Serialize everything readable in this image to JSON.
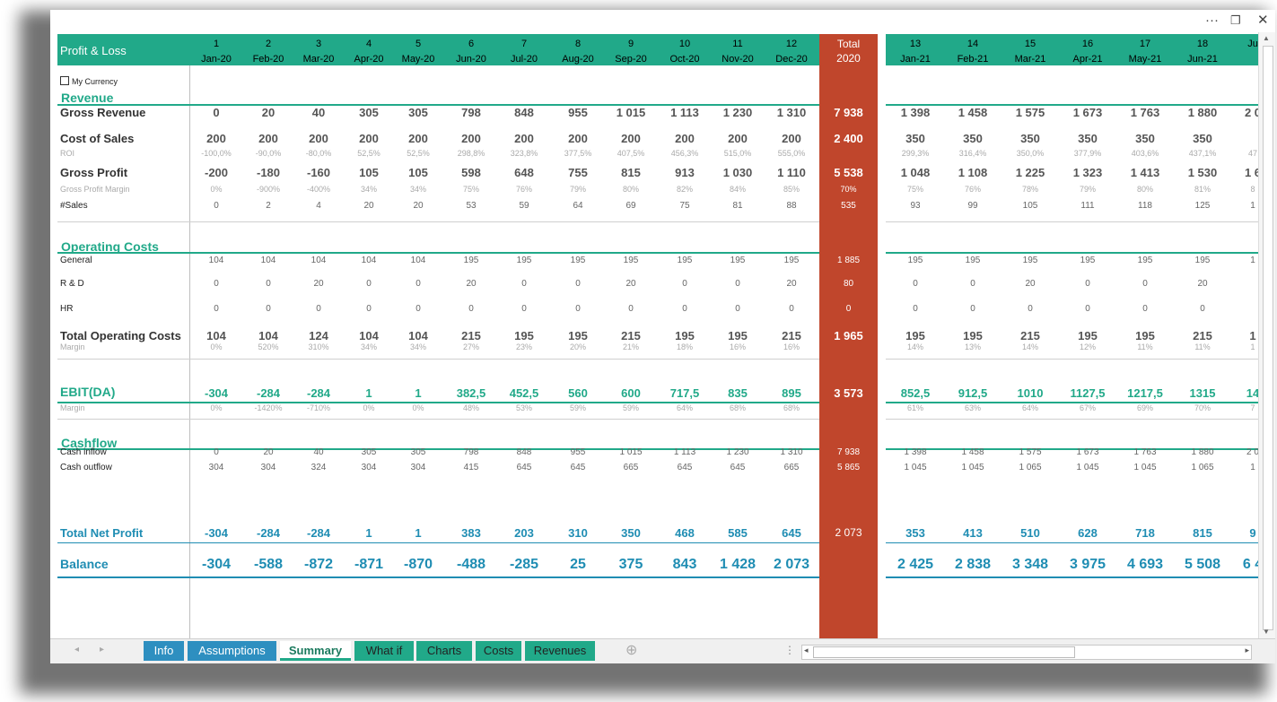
{
  "window": {
    "more_label": "···",
    "restore_label": "❐",
    "close_label": "✕"
  },
  "header": {
    "title": "Profit & Loss",
    "months": [
      {
        "n": "1",
        "d": "Jan-20"
      },
      {
        "n": "2",
        "d": "Feb-20"
      },
      {
        "n": "3",
        "d": "Mar-20"
      },
      {
        "n": "4",
        "d": "Apr-20"
      },
      {
        "n": "5",
        "d": "May-20"
      },
      {
        "n": "6",
        "d": "Jun-20"
      },
      {
        "n": "7",
        "d": "Jul-20"
      },
      {
        "n": "8",
        "d": "Aug-20"
      },
      {
        "n": "9",
        "d": "Sep-20"
      },
      {
        "n": "10",
        "d": "Oct-20"
      },
      {
        "n": "11",
        "d": "Nov-20"
      },
      {
        "n": "12",
        "d": "Dec-20"
      },
      {
        "n": "13",
        "d": "Jan-21"
      },
      {
        "n": "14",
        "d": "Feb-21"
      },
      {
        "n": "15",
        "d": "Mar-21"
      },
      {
        "n": "16",
        "d": "Apr-21"
      },
      {
        "n": "17",
        "d": "May-21"
      },
      {
        "n": "18",
        "d": "Jun-21"
      },
      {
        "n": "",
        "d": "Ju"
      }
    ],
    "total_label": "Total",
    "total_year": "2020"
  },
  "my_currency_label": "My Currency",
  "sections": {
    "revenue": "Revenue",
    "operating_costs": "Operating Costs",
    "ebitda": "EBIT(DA)",
    "cashflow": "Cashflow"
  },
  "rows": [
    {
      "id": "gross-revenue",
      "label": "Gross Revenue",
      "style": "big",
      "top": 82,
      "values": [
        "0",
        "20",
        "40",
        "305",
        "305",
        "798",
        "848",
        "955",
        "1 015",
        "1 113",
        "1 230",
        "1 310",
        "1 398",
        "1 458",
        "1 575",
        "1 673",
        "1 763",
        "1 880",
        "2 0"
      ],
      "total": "7 938"
    },
    {
      "id": "cost-of-sales",
      "label": "Cost of Sales",
      "style": "big",
      "top": 111,
      "values": [
        "200",
        "200",
        "200",
        "200",
        "200",
        "200",
        "200",
        "200",
        "200",
        "200",
        "200",
        "200",
        "350",
        "350",
        "350",
        "350",
        "350",
        "350",
        ""
      ],
      "total": "2 400"
    },
    {
      "id": "roi",
      "label": "ROI",
      "style": "small",
      "top": 130,
      "values": [
        "-100,0%",
        "-90,0%",
        "-80,0%",
        "52,5%",
        "52,5%",
        "298,8%",
        "323,8%",
        "377,5%",
        "407,5%",
        "456,3%",
        "515,0%",
        "555,0%",
        "299,3%",
        "316,4%",
        "350,0%",
        "377,9%",
        "403,6%",
        "437,1%",
        "47"
      ],
      "total": ""
    },
    {
      "id": "gross-profit",
      "label": "Gross Profit",
      "style": "big",
      "top": 149,
      "values": [
        "-200",
        "-180",
        "-160",
        "105",
        "105",
        "598",
        "648",
        "755",
        "815",
        "913",
        "1 030",
        "1 110",
        "1 048",
        "1 108",
        "1 225",
        "1 323",
        "1 413",
        "1 530",
        "1 6"
      ],
      "total": "5 538"
    },
    {
      "id": "gross-profit-margin",
      "label": "Gross Profit Margin",
      "style": "small",
      "top": 170,
      "values": [
        "0%",
        "-900%",
        "-400%",
        "34%",
        "34%",
        "75%",
        "76%",
        "79%",
        "80%",
        "82%",
        "84%",
        "85%",
        "75%",
        "76%",
        "78%",
        "79%",
        "80%",
        "81%",
        "8"
      ],
      "total": "70%"
    },
    {
      "id": "sales-count",
      "label": "#Sales",
      "style": "med",
      "top": 188,
      "values": [
        "0",
        "2",
        "4",
        "20",
        "20",
        "53",
        "59",
        "64",
        "69",
        "75",
        "81",
        "88",
        "93",
        "99",
        "105",
        "111",
        "118",
        "125",
        "1"
      ],
      "total": "535"
    },
    {
      "id": "general",
      "label": "General",
      "style": "med",
      "top": 249,
      "values": [
        "104",
        "104",
        "104",
        "104",
        "104",
        "195",
        "195",
        "195",
        "195",
        "195",
        "195",
        "195",
        "195",
        "195",
        "195",
        "195",
        "195",
        "195",
        "1"
      ],
      "total": "1 885"
    },
    {
      "id": "r-and-d",
      "label": "R & D",
      "style": "med",
      "top": 275,
      "values": [
        "0",
        "0",
        "20",
        "0",
        "0",
        "20",
        "0",
        "0",
        "20",
        "0",
        "0",
        "20",
        "0",
        "0",
        "20",
        "0",
        "0",
        "20",
        ""
      ],
      "total": "80"
    },
    {
      "id": "hr",
      "label": "HR",
      "style": "med",
      "top": 303,
      "values": [
        "0",
        "0",
        "0",
        "0",
        "0",
        "0",
        "0",
        "0",
        "0",
        "0",
        "0",
        "0",
        "0",
        "0",
        "0",
        "0",
        "0",
        "0",
        ""
      ],
      "total": "0"
    },
    {
      "id": "total-operating-costs",
      "label": "Total Operating Costs",
      "style": "big",
      "top": 331,
      "values": [
        "104",
        "104",
        "124",
        "104",
        "104",
        "215",
        "195",
        "195",
        "215",
        "195",
        "195",
        "215",
        "195",
        "195",
        "215",
        "195",
        "195",
        "215",
        "1"
      ],
      "total": "1 965"
    },
    {
      "id": "opcost-margin",
      "label": "Margin",
      "style": "small",
      "top": 346,
      "values": [
        "0%",
        "520%",
        "310%",
        "34%",
        "34%",
        "27%",
        "23%",
        "20%",
        "21%",
        "18%",
        "16%",
        "16%",
        "14%",
        "13%",
        "14%",
        "12%",
        "11%",
        "11%",
        "1"
      ],
      "total": ""
    },
    {
      "id": "ebitda",
      "label": "EBIT(DA)",
      "style": "teal",
      "top": 395,
      "values": [
        "-304",
        "-284",
        "-284",
        "1",
        "1",
        "382,5",
        "452,5",
        "560",
        "600",
        "717,5",
        "835",
        "895",
        "852,5",
        "912,5",
        "1010",
        "1127,5",
        "1217,5",
        "1315",
        "14"
      ],
      "total": "3 573"
    },
    {
      "id": "ebitda-margin",
      "label": "Margin",
      "style": "small",
      "top": 414,
      "values": [
        "0%",
        "-1420%",
        "-710%",
        "0%",
        "0%",
        "48%",
        "53%",
        "59%",
        "59%",
        "64%",
        "68%",
        "68%",
        "61%",
        "63%",
        "64%",
        "67%",
        "69%",
        "70%",
        "7"
      ],
      "total": ""
    },
    {
      "id": "cash-inflow",
      "label": "Cash inflow",
      "style": "med",
      "top": 463,
      "values": [
        "0",
        "20",
        "40",
        "305",
        "305",
        "798",
        "848",
        "955",
        "1 015",
        "1 113",
        "1 230",
        "1 310",
        "1 398",
        "1 458",
        "1 575",
        "1 673",
        "1 763",
        "1 880",
        "2 0"
      ],
      "total": "7 938"
    },
    {
      "id": "cash-outflow",
      "label": "Cash outflow",
      "style": "med",
      "top": 480,
      "values": [
        "304",
        "304",
        "324",
        "304",
        "304",
        "415",
        "645",
        "645",
        "665",
        "645",
        "645",
        "665",
        "1 045",
        "1 045",
        "1 065",
        "1 045",
        "1 045",
        "1 065",
        "1"
      ],
      "total": "5 865"
    },
    {
      "id": "total-net-profit",
      "label": "Total Net Profit",
      "style": "blue",
      "top": 551,
      "values": [
        "-304",
        "-284",
        "-284",
        "1",
        "1",
        "383",
        "203",
        "310",
        "350",
        "468",
        "585",
        "645",
        "353",
        "413",
        "510",
        "628",
        "718",
        "815",
        "9"
      ],
      "total": "2 073"
    },
    {
      "id": "balance",
      "label": "Balance",
      "style": "balance",
      "top": 585,
      "values": [
        "-304",
        "-588",
        "-872",
        "-871",
        "-870",
        "-488",
        "-285",
        "25",
        "375",
        "843",
        "1 428",
        "2 073",
        "2 425",
        "2 838",
        "3 348",
        "3 975",
        "4 693",
        "5 508",
        "6 4"
      ],
      "total": ""
    }
  ],
  "tabs": [
    {
      "label": "Info",
      "kind": "blue"
    },
    {
      "label": "Assumptions",
      "kind": "blue"
    },
    {
      "label": "Summary",
      "kind": "active"
    },
    {
      "label": "What if",
      "kind": "green"
    },
    {
      "label": "Charts",
      "kind": "green"
    },
    {
      "label": "Costs",
      "kind": "green"
    },
    {
      "label": "Revenues",
      "kind": "green"
    }
  ],
  "tabbar": {
    "prev": "◂",
    "next": "▸",
    "add": "⊕",
    "splitter": "⋮"
  }
}
